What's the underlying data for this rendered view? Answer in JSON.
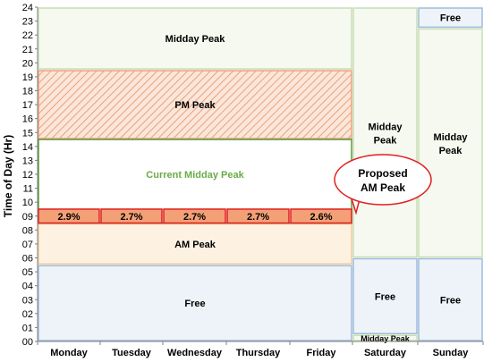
{
  "chart_data": {
    "type": "schedule",
    "ylabel": "Time of Day (Hr)",
    "ylim": [
      0,
      24
    ],
    "yticks": [
      "00",
      "01",
      "02",
      "03",
      "04",
      "05",
      "06",
      "07",
      "08",
      "09",
      "10",
      "11",
      "12",
      "13",
      "14",
      "15",
      "16",
      "17",
      "18",
      "19",
      "20",
      "21",
      "22",
      "23",
      "24"
    ],
    "categories": [
      "Monday",
      "Tuesday",
      "Wednesday",
      "Thursday",
      "Friday",
      "Saturday",
      "Sunday"
    ],
    "colors": {
      "free_fill": "#edf3f9",
      "free_stroke": "#9fbcdc",
      "midday_fill": "#f5f9ef",
      "midday_stroke": "#c8deb6",
      "pm_fill": "#fbe6da",
      "pm_hatch": "#e8a27c",
      "pm_stroke": "#f0a07a",
      "am_fill": "#fdf2e2",
      "am_stroke": "#f2c89a",
      "current_stroke": "#5a9a3a",
      "current_text": "#6aab45",
      "pct_fill": "#f4a076",
      "pct_stroke": "#e02020",
      "callout_stroke": "#e02020"
    },
    "blocks": [
      {
        "id": "weekday-free",
        "label": "Free",
        "day_start": 0,
        "day_end": 5,
        "hour_start": 0,
        "hour_end": 5.5,
        "style": "free"
      },
      {
        "id": "weekday-am-peak",
        "label": "AM Peak",
        "day_start": 0,
        "day_end": 5,
        "hour_start": 5.5,
        "hour_end": 8.5,
        "style": "am"
      },
      {
        "id": "weekday-pm-peak",
        "label": "PM Peak",
        "day_start": 0,
        "day_end": 5,
        "hour_start": 14.5,
        "hour_end": 19.5,
        "style": "pm"
      },
      {
        "id": "weekday-midday-peak",
        "label": "Midday Peak",
        "day_start": 0,
        "day_end": 5,
        "hour_start": 19.5,
        "hour_end": 24,
        "style": "midday"
      },
      {
        "id": "saturday-midday-small",
        "label": "Midday Peak",
        "day_start": 5,
        "day_end": 6,
        "hour_start": 0,
        "hour_end": 0.5,
        "style": "midday"
      },
      {
        "id": "saturday-free",
        "label": "Free",
        "day_start": 5,
        "day_end": 6,
        "hour_start": 0.5,
        "hour_end": 6,
        "style": "free"
      },
      {
        "id": "saturday-midday-peak",
        "label": "Midday Peak",
        "day_start": 5,
        "day_end": 6,
        "hour_start": 6,
        "hour_end": 24,
        "style": "midday"
      },
      {
        "id": "sunday-free-low",
        "label": "Free",
        "day_start": 6,
        "day_end": 7,
        "hour_start": 0,
        "hour_end": 6,
        "style": "free"
      },
      {
        "id": "sunday-midday-peak",
        "label": "Midday Peak",
        "day_start": 6,
        "day_end": 7,
        "hour_start": 6,
        "hour_end": 22.5,
        "style": "midday"
      },
      {
        "id": "sunday-free-high",
        "label": "Free",
        "day_start": 6,
        "day_end": 7,
        "hour_start": 22.5,
        "hour_end": 24,
        "style": "free"
      }
    ],
    "current_midday": {
      "label": "Current Midday Peak",
      "day_start": 0,
      "day_end": 5,
      "hour_start": 8.5,
      "hour_end": 14.5
    },
    "proposed_am_peak": {
      "hour_start": 8.5,
      "hour_end": 9.5,
      "values": [
        "2.9%",
        "2.7%",
        "2.7%",
        "2.7%",
        "2.6%"
      ]
    },
    "callout": {
      "line1": "Proposed",
      "line2": "AM Peak"
    }
  }
}
